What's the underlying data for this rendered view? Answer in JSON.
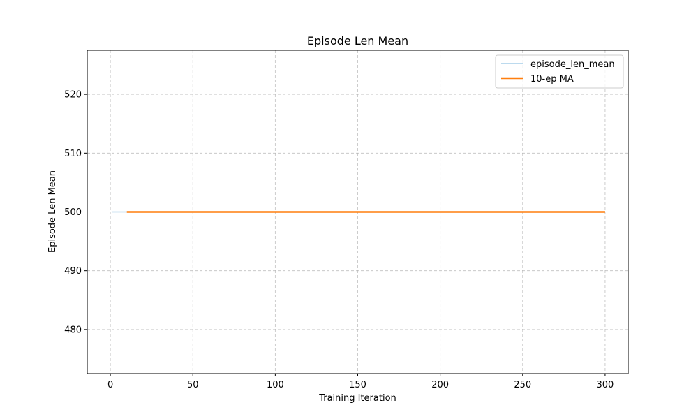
{
  "chart_data": {
    "type": "line",
    "title": "Episode Len Mean",
    "xlabel": "Training Iteration",
    "ylabel": "Episode Len Mean",
    "xlim": [
      -14,
      314
    ],
    "ylim": [
      472.5,
      527.5
    ],
    "xticks": [
      0,
      50,
      100,
      150,
      200,
      250,
      300
    ],
    "yticks": [
      480,
      490,
      500,
      510,
      520
    ],
    "grid": true,
    "legend_position": "top-right",
    "series": [
      {
        "name": "episode_len_mean",
        "color": "#a6cde8",
        "x": [
          1,
          300
        ],
        "y": [
          500,
          500
        ]
      },
      {
        "name": "10-ep MA",
        "color": "#ff7f0e",
        "x": [
          10,
          300
        ],
        "y": [
          500,
          500
        ]
      }
    ]
  }
}
